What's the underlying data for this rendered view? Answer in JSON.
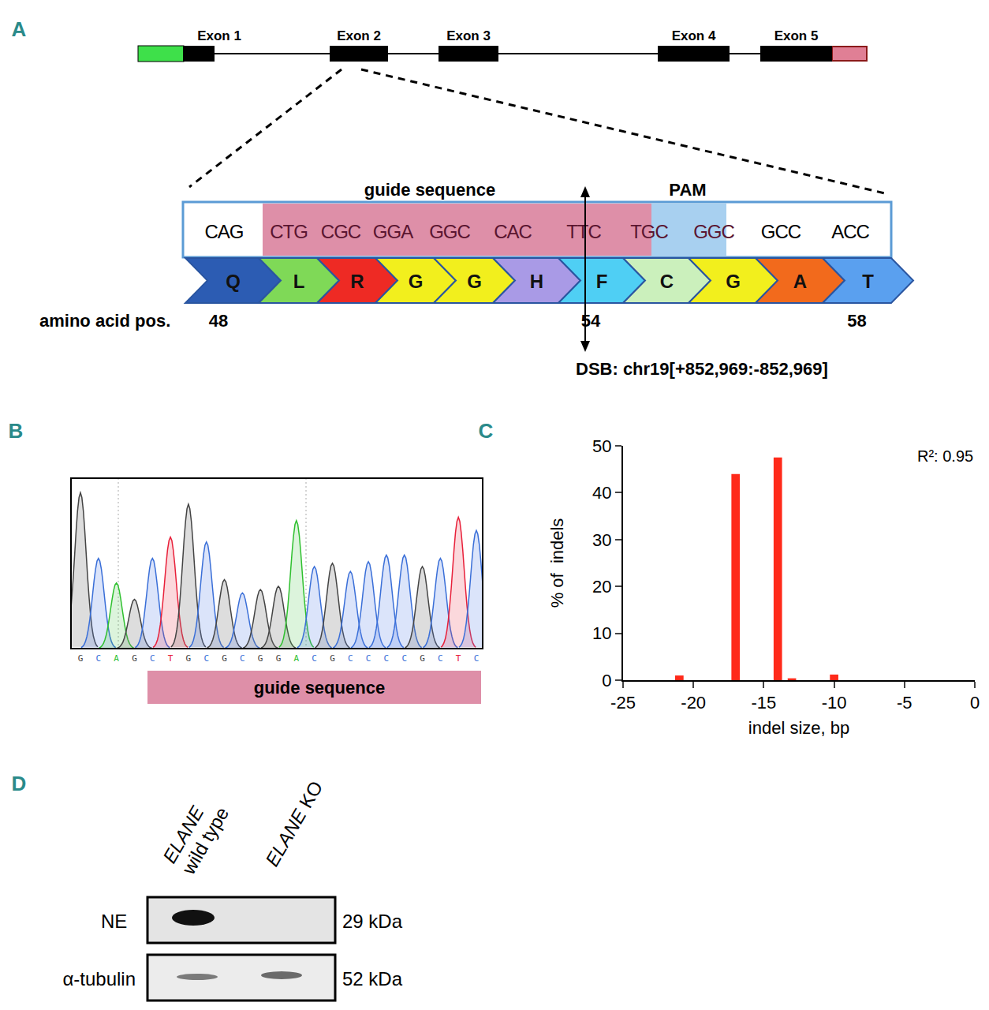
{
  "panels": {
    "A": {
      "letter": "A",
      "exons": [
        "Exon 1",
        "Exon 2",
        "Exon 3",
        "Exon 4",
        "Exon 5"
      ],
      "guide_label": "guide sequence",
      "pam_label": "PAM",
      "codons": [
        "CAG",
        "CTG",
        "CGC",
        "GGA",
        "GGC",
        "CAC",
        "TTC",
        "TGC",
        "GGC",
        "GCC",
        "ACC"
      ],
      "amino_acids": [
        {
          "letter": "Q",
          "pos": 48
        },
        {
          "letter": "L",
          "pos": null
        },
        {
          "letter": "R",
          "pos": null
        },
        {
          "letter": "G",
          "pos": null
        },
        {
          "letter": "G",
          "pos": null
        },
        {
          "letter": "H",
          "pos": null
        },
        {
          "letter": "F",
          "pos": 54
        },
        {
          "letter": "C",
          "pos": null
        },
        {
          "letter": "G",
          "pos": null
        },
        {
          "letter": "A",
          "pos": null
        },
        {
          "letter": "T",
          "pos": 58
        }
      ],
      "aa_pos_label": "amino acid pos.",
      "dsb": "DSB: chr19[+852,969:-852,969]"
    },
    "B": {
      "letter": "B",
      "bases": [
        "G",
        "C",
        "A",
        "G",
        "C",
        "T",
        "G",
        "C",
        "G",
        "C",
        "G",
        "G",
        "A",
        "C",
        "G",
        "C",
        "C",
        "C",
        "C",
        "G",
        "C",
        "T",
        "C"
      ],
      "peak_heights": [
        0.95,
        0.55,
        0.4,
        0.3,
        0.55,
        0.68,
        0.88,
        0.65,
        0.42,
        0.34,
        0.36,
        0.38,
        0.78,
        0.5,
        0.52,
        0.47,
        0.53,
        0.57,
        0.57,
        0.5,
        0.55,
        0.8,
        0.72
      ],
      "guide_label": "guide sequence"
    },
    "C": {
      "letter": "C"
    },
    "D": {
      "letter": "D",
      "lanes": [
        {
          "gene": "ELANE",
          "label": "wild type"
        },
        {
          "gene": "ELANE",
          "label": "KO"
        }
      ],
      "rows": [
        {
          "name": "NE",
          "size": "29 kDa"
        },
        {
          "name": "α-tubulin",
          "size": "52 kDa"
        }
      ]
    }
  },
  "chart_data": {
    "type": "bar",
    "x": [
      -21,
      -17,
      -14,
      -13,
      -10
    ],
    "values": [
      1,
      44,
      47.5,
      0.4,
      1.2
    ],
    "color": "#ff2a1a",
    "x_label": "indel size, bp",
    "y_label": "% of  indels",
    "annotation": "R²: 0.95",
    "xlim": [
      -25,
      0
    ],
    "xticks": [
      -25,
      -20,
      -15,
      -10,
      -5,
      0
    ],
    "ylim": [
      0,
      50
    ],
    "yticks": [
      0,
      10,
      20,
      30,
      40,
      50
    ],
    "grid": false
  }
}
